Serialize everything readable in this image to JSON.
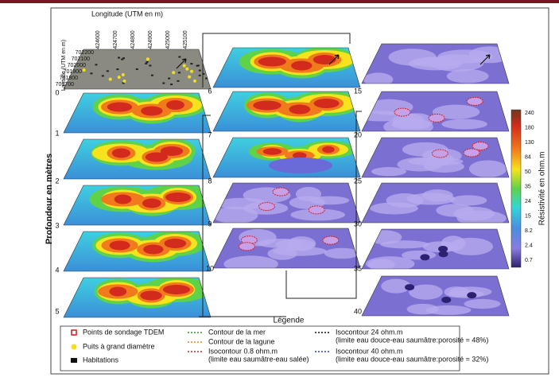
{
  "axes": {
    "longitude_label": "Longitude (UTM en m)",
    "longitude_ticks": [
      424600,
      424700,
      424800,
      424900,
      425000,
      425100
    ],
    "latitude_label": "Latitude (UTM en m)",
    "latitude_ticks": [
      702200,
      702100,
      702000,
      701900,
      701800,
      701700
    ],
    "depth_label": "Profondeur en mètres"
  },
  "depth_columns": [
    [
      0,
      1,
      2,
      3,
      4,
      5
    ],
    [
      6,
      7,
      8,
      9,
      10
    ],
    [
      15,
      20,
      25,
      30,
      35,
      40
    ]
  ],
  "colorbar": {
    "title": "Résistivité en ohm.m",
    "labels": [
      240,
      180,
      130,
      84,
      50,
      35,
      24,
      15,
      8.2,
      2.4,
      0.7
    ]
  },
  "legend": {
    "title": "Légende",
    "items": [
      {
        "label": "Points de sondage TDEM"
      },
      {
        "label": "Puits à grand diamètre"
      },
      {
        "label": "Habitations"
      },
      {
        "label": "Contour de la mer"
      },
      {
        "label": "Contour de la lagune"
      },
      {
        "label": "Isocontour 0.8 ohm.m",
        "note": "(limite eau saumâtre-eau salée)"
      },
      {
        "label": "Isocontour 24 ohm.m",
        "note": "(limite eau douce-eau saumâtre:porosité = 48%)"
      },
      {
        "label": "Isocontour 40 ohm.m",
        "note": "(limite eau douce-eau saumâtre:porosité = 32%)"
      }
    ]
  }
}
